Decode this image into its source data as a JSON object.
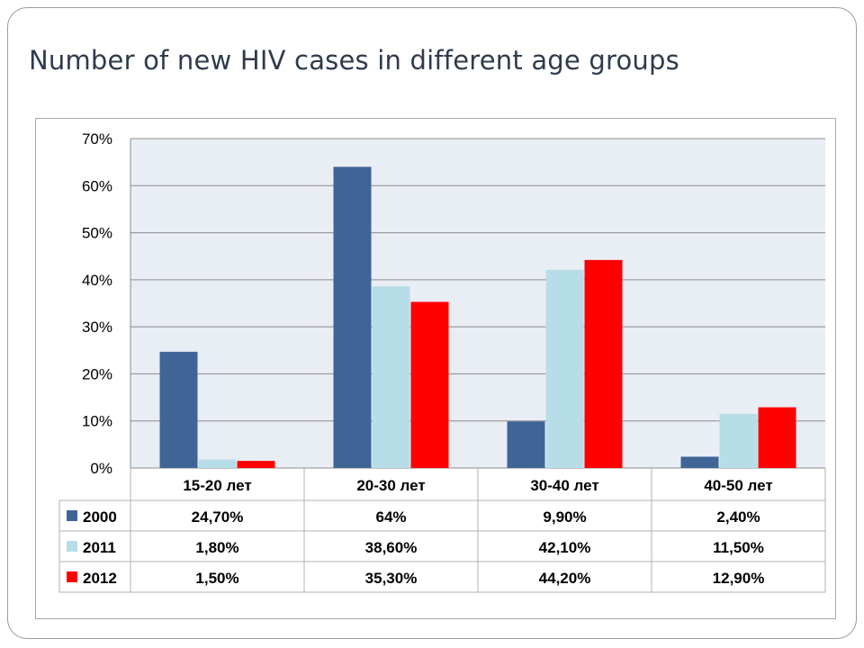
{
  "slide": {
    "title": "Number of new HIV cases in different age groups"
  },
  "chart_data": {
    "type": "bar",
    "title": "",
    "xlabel": "",
    "ylabel": "",
    "categories": [
      "15-20 лет",
      "20-30 лет",
      "30-40 лет",
      "40-50 лет"
    ],
    "ylim": [
      0,
      70
    ],
    "yticks": [
      0,
      10,
      20,
      30,
      40,
      50,
      60,
      70
    ],
    "ytick_labels": [
      "0%",
      "10%",
      "20%",
      "30%",
      "40%",
      "50%",
      "60%",
      "70%"
    ],
    "grid": true,
    "legend": "data-table",
    "series": [
      {
        "name": "2000",
        "color": "#3f6597",
        "values": [
          24.7,
          64,
          9.9,
          2.4
        ],
        "labels": [
          "24,70%",
          "64%",
          "9,90%",
          "2,40%"
        ]
      },
      {
        "name": "2011",
        "color": "#b7dde8",
        "values": [
          1.8,
          38.6,
          42.1,
          11.5
        ],
        "labels": [
          "1,80%",
          "38,60%",
          "42,10%",
          "11,50%"
        ]
      },
      {
        "name": "2012",
        "color": "#ff0000",
        "values": [
          1.5,
          35.3,
          44.2,
          12.9
        ],
        "labels": [
          "1,50%",
          "35,30%",
          "44,20%",
          "12,90%"
        ]
      }
    ],
    "colors": {
      "plot_background": "#e9edf4",
      "gridline": "#8c8c8c",
      "table_border": "#b0b0b0"
    }
  }
}
